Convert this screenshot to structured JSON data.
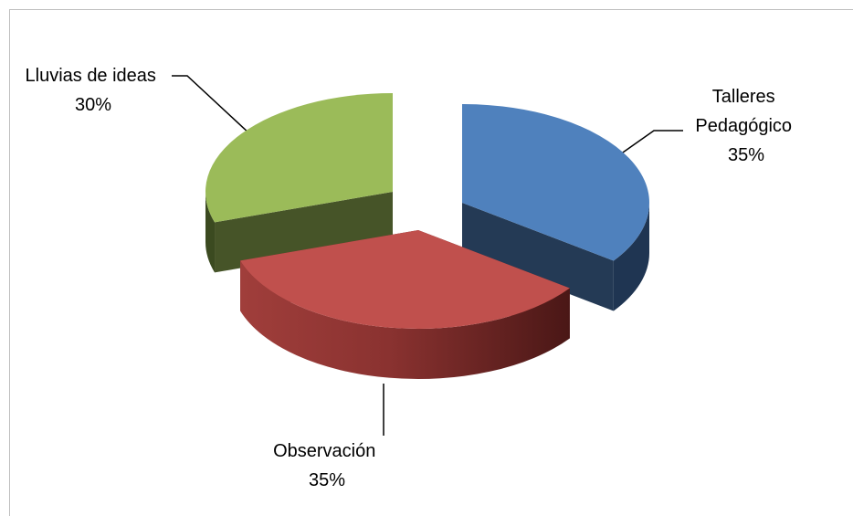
{
  "chart_data": {
    "type": "pie",
    "title": "",
    "three_d": true,
    "exploded": true,
    "slices": [
      {
        "name_lines": [
          "Talleres",
          "Pedagógico"
        ],
        "value": 35,
        "value_label": "35%",
        "color": "#4f81bd"
      },
      {
        "name_lines": [
          "Observación"
        ],
        "value": 35,
        "value_label": "35%",
        "color": "#c0504d"
      },
      {
        "name_lines": [
          "Lluvias de ideas"
        ],
        "value": 30,
        "value_label": "30%",
        "color": "#9bbb59"
      }
    ],
    "legend": "none"
  }
}
